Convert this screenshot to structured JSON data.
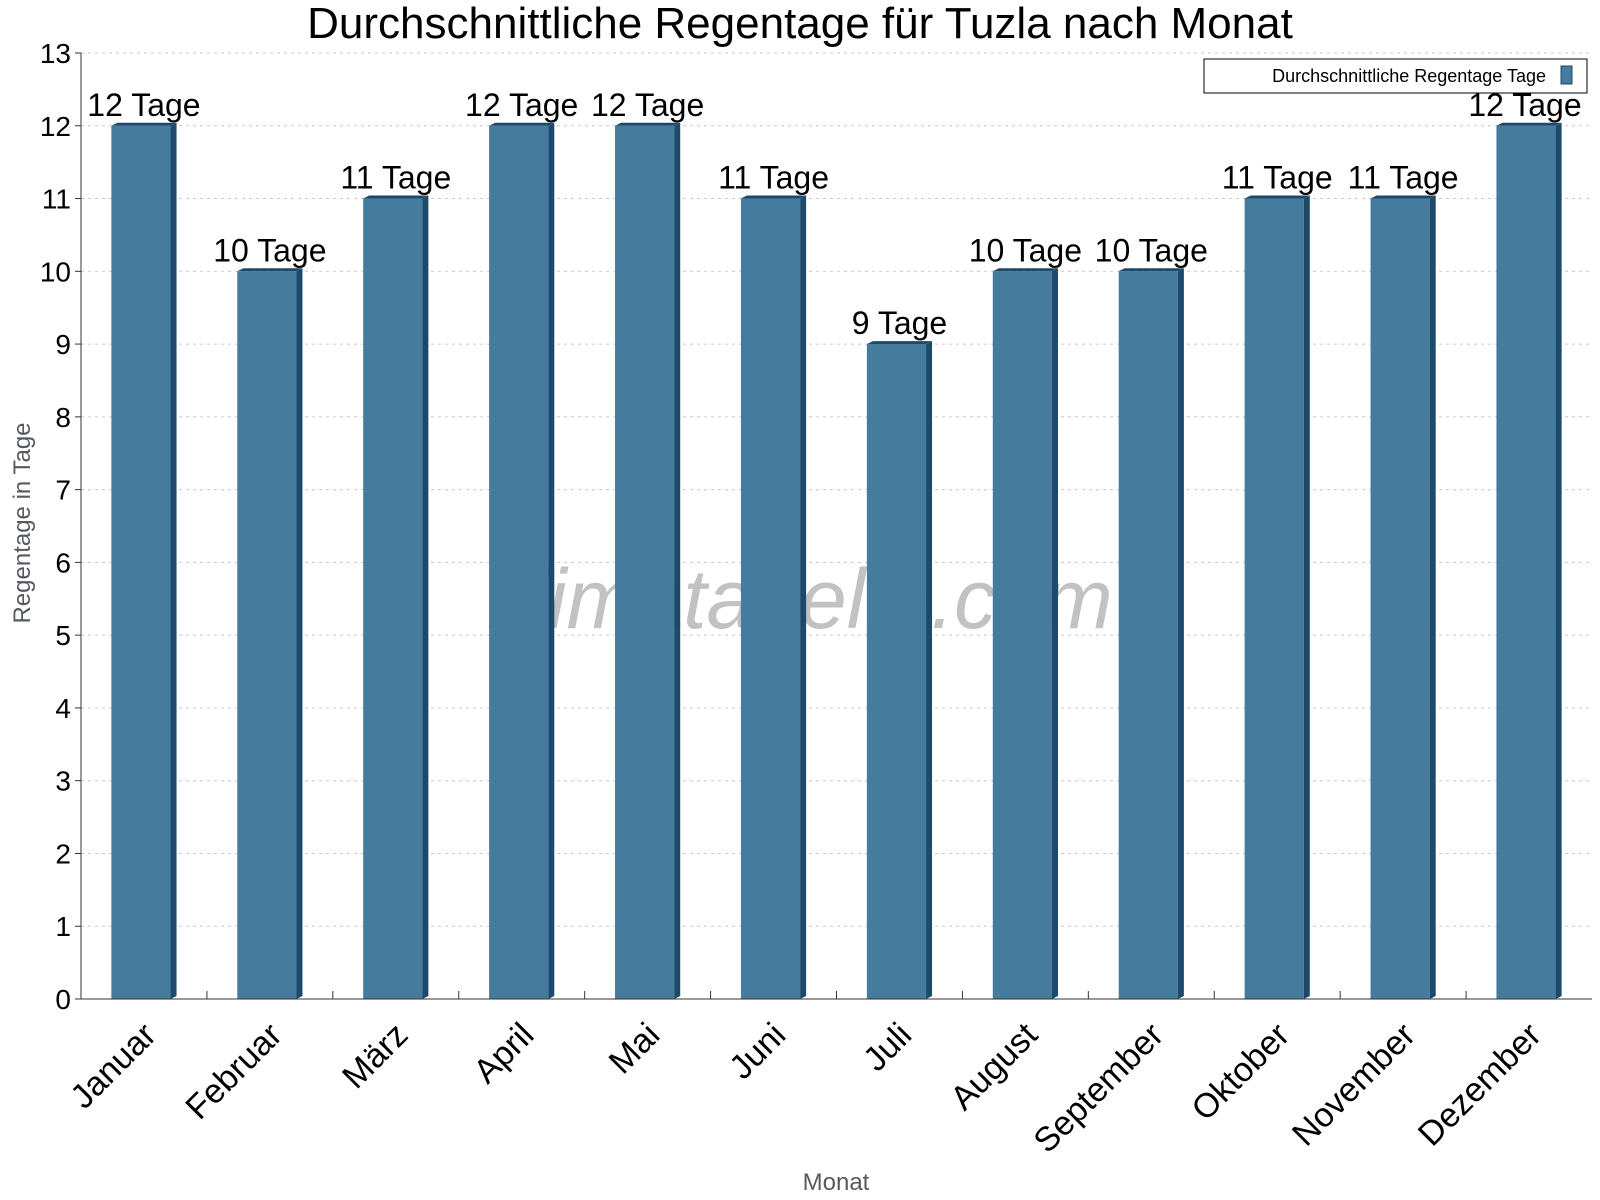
{
  "watermark": "klimatabelle.com",
  "colors": {
    "bar": "#457b9d",
    "bar_side": "#1d4a6a",
    "bar_top": "#1d4a6a",
    "grid": "#c8c8c8",
    "axis": "#333333"
  },
  "chart_data": {
    "type": "bar",
    "title": "Durchschnittliche Regentage für Tuzla nach Monat",
    "xlabel": "Monat",
    "ylabel": "Regentage in Tage",
    "ylim": [
      0,
      13
    ],
    "yticks": [
      0,
      1,
      2,
      3,
      4,
      5,
      6,
      7,
      8,
      9,
      10,
      11,
      12,
      13
    ],
    "grid": true,
    "legend_position": "top-right",
    "categories": [
      "Januar",
      "Februar",
      "März",
      "April",
      "Mai",
      "Juni",
      "Juli",
      "August",
      "September",
      "Oktober",
      "November",
      "Dezember"
    ],
    "series": [
      {
        "name": "Durchschnittliche Regentage Tage",
        "values": [
          12,
          10,
          11,
          12,
          12,
          11,
          9,
          10,
          10,
          11,
          11,
          12
        ],
        "labels": [
          "12 Tage",
          "10 Tage",
          "11 Tage",
          "12 Tage",
          "12 Tage",
          "11 Tage",
          "9 Tage",
          "10 Tage",
          "10 Tage",
          "11 Tage",
          "11 Tage",
          "12 Tage"
        ]
      }
    ]
  }
}
